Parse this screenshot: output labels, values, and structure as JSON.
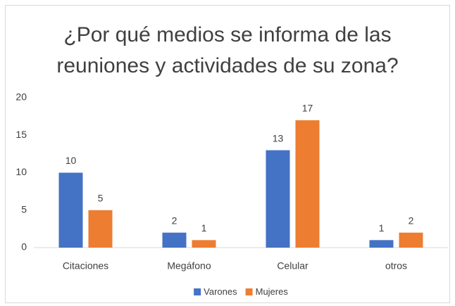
{
  "chart_data": {
    "type": "bar",
    "title": "¿Por qué medios se informa de las reuniones y actividades de su zona?",
    "categories": [
      "Citaciones",
      "Megáfono",
      "Celular",
      "otros"
    ],
    "series": [
      {
        "name": "Varones",
        "color": "#4472c4",
        "values": [
          10,
          2,
          13,
          1
        ]
      },
      {
        "name": "Mujeres",
        "color": "#ed7d31",
        "values": [
          5,
          1,
          17,
          2
        ]
      }
    ],
    "ylim": [
      0,
      20
    ],
    "yticks": [
      0,
      5,
      10,
      15,
      20
    ],
    "grid": false,
    "legend": "bottom"
  }
}
